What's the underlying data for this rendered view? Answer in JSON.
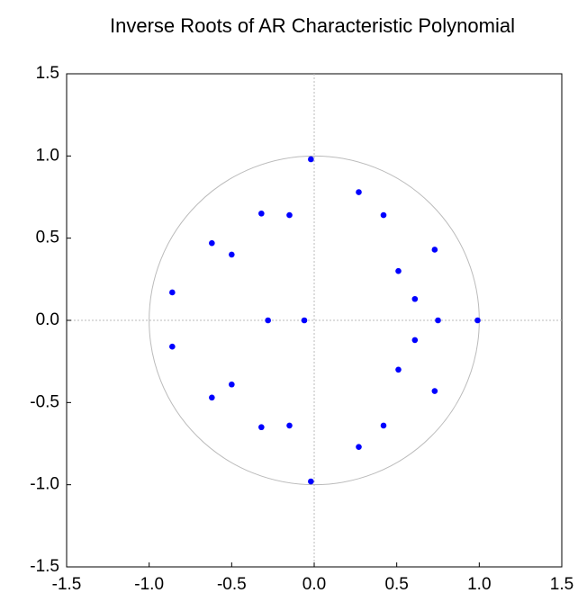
{
  "chart_data": {
    "type": "scatter",
    "title": "Inverse Roots of AR Characteristic Polynomial",
    "x": [
      -0.02,
      0.27,
      0.42,
      0.73,
      0.51,
      0.61,
      0.75,
      0.99,
      0.61,
      0.51,
      0.73,
      0.42,
      0.27,
      -0.02,
      -0.15,
      -0.32,
      -0.5,
      -0.62,
      -0.86,
      -0.86,
      -0.62,
      -0.5,
      -0.32,
      -0.15,
      -0.28,
      -0.06
    ],
    "values": [
      0.98,
      0.78,
      0.64,
      0.43,
      0.3,
      0.13,
      0,
      0,
      -0.12,
      -0.3,
      -0.43,
      -0.64,
      -0.77,
      -0.98,
      -0.64,
      -0.65,
      -0.39,
      -0.47,
      -0.16,
      0.17,
      0.47,
      0.4,
      0.65,
      0.64,
      0,
      0
    ],
    "color": "#0000ff",
    "xlim": [
      -1.5,
      1.5
    ],
    "ylim": [
      -1.5,
      1.5
    ],
    "xticks": [
      {
        "value": -1.5,
        "label": "-1.5"
      },
      {
        "value": -1,
        "label": "-1.0"
      },
      {
        "value": -0.5,
        "label": "-0.5"
      },
      {
        "value": 0,
        "label": "0.0"
      },
      {
        "value": 0.5,
        "label": "0.5"
      },
      {
        "value": 1,
        "label": "1.0"
      },
      {
        "value": 1.5,
        "label": "1.5"
      }
    ],
    "yticks": [
      {
        "value": -1.5,
        "label": "-1.5"
      },
      {
        "value": -1,
        "label": "-1.0"
      },
      {
        "value": -0.5,
        "label": "-0.5"
      },
      {
        "value": 0,
        "label": "0.0"
      },
      {
        "value": 0.5,
        "label": "0.5"
      },
      {
        "value": 1,
        "label": "1.0"
      },
      {
        "value": 1.5,
        "label": "1.5"
      }
    ],
    "unit_circle": true,
    "zero_lines": true
  }
}
